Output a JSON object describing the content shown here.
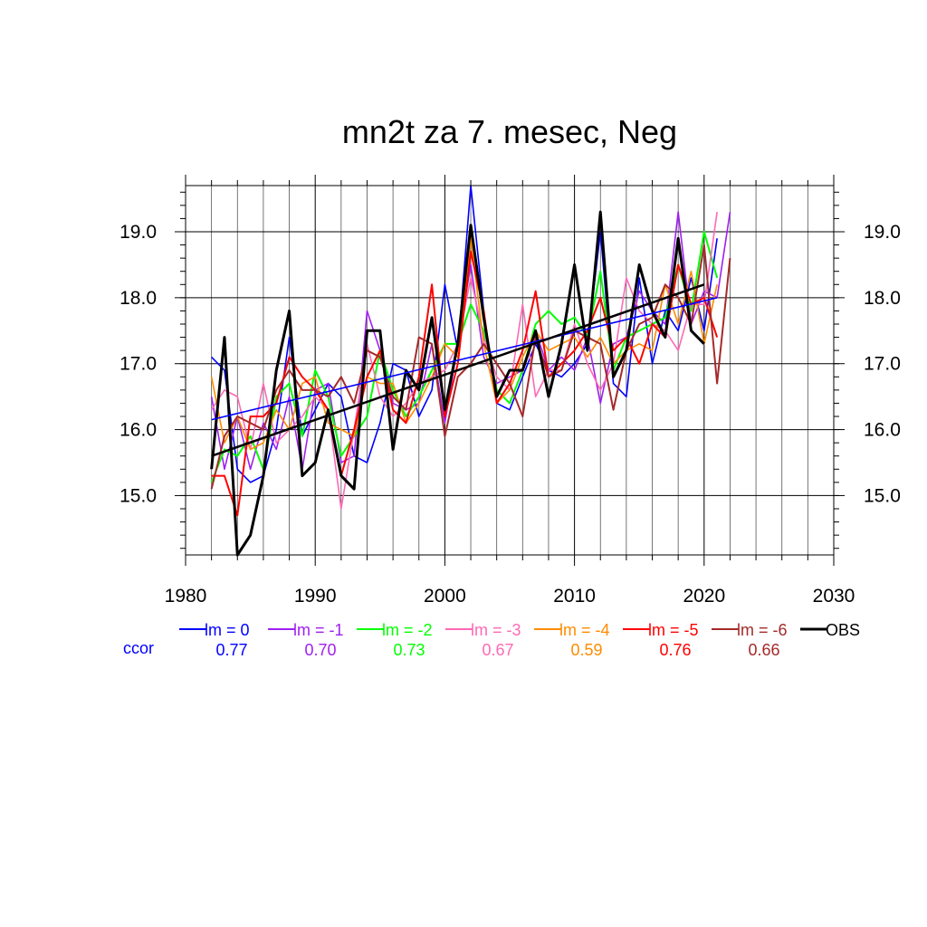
{
  "chart_data": {
    "type": "line",
    "title": "mn2t za 7. mesec, Neg",
    "xlabel": "",
    "ylabel": "",
    "xlim": [
      1980,
      2030
    ],
    "ylim": [
      14.1,
      19.7
    ],
    "x_ticks": [
      "1980",
      "1990",
      "2000",
      "2010",
      "2020",
      "2030"
    ],
    "y_ticks": [
      "15.0",
      "16.0",
      "17.0",
      "18.0",
      "19.0"
    ],
    "grid": true,
    "legend_position": "bottom",
    "ccor_label": "ccor",
    "series": [
      {
        "name": "lm = 0",
        "color": "#0000ff",
        "ccor": "0.77",
        "x_start": 1982,
        "values": [
          17.1,
          16.9,
          15.4,
          15.2,
          15.3,
          16.0,
          17.4,
          15.9,
          16.3,
          16.7,
          16.5,
          15.6,
          15.5,
          16.1,
          17.0,
          16.9,
          16.2,
          16.6,
          18.2,
          17.2,
          19.7,
          17.8,
          16.4,
          16.3,
          16.8,
          17.3,
          16.9,
          16.8,
          17.0,
          17.3,
          19.0,
          16.7,
          16.5,
          18.3,
          17.0,
          17.8,
          17.5,
          18.3,
          17.5,
          18.9
        ]
      },
      {
        "name": "lm = -1",
        "color": "#a020f0",
        "ccor": "0.70",
        "x_start": 1982,
        "values": [
          16.5,
          15.4,
          16.2,
          15.4,
          16.1,
          15.7,
          16.5,
          15.4,
          16.6,
          16.7,
          15.5,
          15.6,
          17.8,
          17.2,
          16.4,
          16.3,
          16.4,
          17.3,
          16.1,
          17.3,
          18.5,
          17.1,
          16.7,
          16.8,
          16.9,
          17.5,
          16.9,
          17.1,
          16.9,
          17.4,
          16.4,
          17.3,
          17.4,
          18.1,
          17.8,
          17.6,
          19.3,
          17.6,
          18.1,
          18.0,
          19.3
        ]
      },
      {
        "name": "lm = -2",
        "color": "#00ff00",
        "ccor": "0.73",
        "x_start": 1982,
        "values": [
          15.2,
          15.7,
          15.6,
          15.9,
          15.4,
          16.5,
          16.7,
          15.9,
          16.9,
          16.5,
          15.6,
          15.9,
          16.2,
          17.2,
          16.6,
          16.2,
          16.5,
          16.9,
          17.3,
          17.3,
          17.9,
          17.5,
          16.6,
          16.4,
          16.9,
          17.6,
          17.8,
          17.6,
          17.7,
          17.4,
          18.4,
          16.9,
          17.4,
          17.5,
          17.6,
          17.7,
          18.5,
          17.8,
          19.0,
          18.3
        ]
      },
      {
        "name": "lm = -3",
        "color": "#ff69b4",
        "ccor": "0.67",
        "x_start": 1982,
        "values": [
          16.3,
          16.6,
          16.5,
          15.7,
          16.7,
          15.8,
          16.0,
          16.2,
          16.5,
          16.3,
          14.8,
          16.0,
          17.3,
          16.5,
          16.2,
          16.4,
          16.7,
          16.8,
          16.9,
          17.3,
          18.3,
          17.4,
          16.8,
          16.6,
          17.9,
          16.5,
          16.9,
          16.9,
          17.6,
          17.0,
          16.6,
          17.0,
          18.3,
          17.8,
          17.6,
          17.5,
          17.2,
          17.9,
          17.9,
          19.3
        ]
      },
      {
        "name": "lm = -4",
        "color": "#ff8c00",
        "ccor": "0.59",
        "x_start": 1982,
        "values": [
          16.8,
          15.8,
          16.2,
          15.7,
          15.8,
          16.3,
          16.0,
          16.7,
          16.8,
          16.1,
          16.0,
          15.9,
          16.8,
          16.7,
          16.7,
          16.1,
          16.4,
          16.8,
          17.3,
          17.1,
          18.9,
          17.3,
          16.4,
          16.6,
          17.1,
          17.5,
          17.2,
          17.3,
          17.4,
          17.1,
          17.4,
          17.0,
          17.2,
          17.3,
          17.2,
          18.2,
          17.6,
          18.4,
          17.3,
          18.2
        ]
      },
      {
        "name": "lm = -5",
        "color": "#ff0000",
        "ccor": "0.76",
        "x_start": 1982,
        "values": [
          15.3,
          15.3,
          14.7,
          16.2,
          16.2,
          16.4,
          17.1,
          16.8,
          16.6,
          16.3,
          15.3,
          16.0,
          16.8,
          17.2,
          16.3,
          16.1,
          16.8,
          18.2,
          16.2,
          17.0,
          18.7,
          17.8,
          16.4,
          16.7,
          17.2,
          18.1,
          16.8,
          17.0,
          17.2,
          17.5,
          18.0,
          17.2,
          17.4,
          17.0,
          17.6,
          17.4,
          18.5,
          17.9,
          18.0,
          17.4
        ]
      },
      {
        "name": "lm = -6",
        "color": "#a52a2a",
        "ccor": "0.66",
        "x_start": 1982,
        "values": [
          15.1,
          15.9,
          16.2,
          16.1,
          16.0,
          16.6,
          16.9,
          16.6,
          16.6,
          16.5,
          16.8,
          16.4,
          17.2,
          17.1,
          16.5,
          16.3,
          17.4,
          17.3,
          15.9,
          16.8,
          17.0,
          17.3,
          17.0,
          16.7,
          16.2,
          17.4,
          16.8,
          16.9,
          17.5,
          17.4,
          17.3,
          16.3,
          17.2,
          17.6,
          17.7,
          18.2,
          18.0,
          17.6,
          18.8,
          16.7,
          18.6
        ]
      },
      {
        "name": "OBS",
        "color": "#000000",
        "ccor": "",
        "x_start": 1982,
        "values": [
          15.4,
          17.4,
          14.1,
          14.4,
          15.3,
          16.9,
          17.8,
          15.3,
          15.5,
          16.3,
          15.3,
          15.1,
          17.5,
          17.5,
          15.7,
          16.9,
          16.6,
          17.7,
          16.3,
          17.3,
          19.1,
          17.7,
          16.5,
          16.9,
          16.9,
          17.5,
          16.5,
          17.3,
          18.5,
          17.2,
          19.3,
          16.8,
          17.2,
          18.5,
          17.8,
          17.4,
          18.9,
          17.5,
          17.3
        ]
      }
    ],
    "trend_lines": [
      {
        "color": "#0000ff",
        "x": [
          1982,
          2021
        ],
        "y": [
          16.15,
          18.0
        ]
      },
      {
        "color": "#000000",
        "x": [
          1982,
          2020
        ],
        "y": [
          15.6,
          18.2
        ]
      }
    ]
  }
}
